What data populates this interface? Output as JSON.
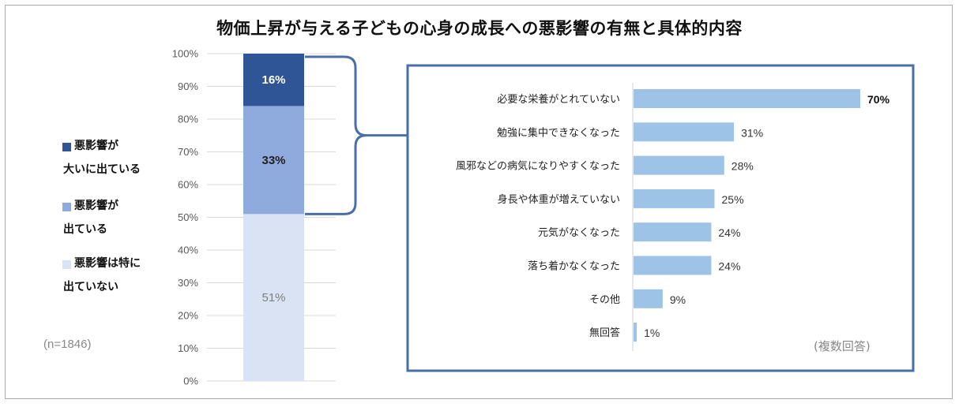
{
  "title": "物価上昇が与える子どもの心身の成長への悪影響の有無と具体的内容",
  "legend": [
    {
      "line1": "悪影響が",
      "line2": "大いに出ている",
      "color": "#2f5597"
    },
    {
      "line1": "悪影響が",
      "line2": "出ている",
      "color": "#8faadc"
    },
    {
      "line1": "悪影響は特に",
      "line2": "出ていない",
      "color": "#dae3f3"
    }
  ],
  "sample_size": "(n=1846)",
  "multiple_answer_note": "(複数回答)",
  "chart_data": [
    {
      "type": "bar",
      "stacked": true,
      "orientation": "vertical",
      "title": "",
      "ylim": [
        0,
        100
      ],
      "yticks": [
        "0%",
        "10%",
        "20%",
        "30%",
        "40%",
        "50%",
        "60%",
        "70%",
        "80%",
        "90%",
        "100%"
      ],
      "grid": true,
      "series": [
        {
          "name": "悪影響は特に出ていない",
          "value": 51,
          "label": "51%",
          "color": "#dae3f3",
          "label_color": "#7f7f7f",
          "label_bold": false
        },
        {
          "name": "悪影響が出ている",
          "value": 33,
          "label": "33%",
          "color": "#8faadc",
          "label_color": "#1f1f1f",
          "label_bold": true
        },
        {
          "name": "悪影響が大いに出ている",
          "value": 16,
          "label": "16%",
          "color": "#2f5597",
          "label_color": "#ffffff",
          "label_bold": true
        }
      ]
    },
    {
      "type": "bar",
      "orientation": "horizontal",
      "title": "",
      "xlim": [
        0,
        100
      ],
      "bar_color": "#9dc3e6",
      "categories": [
        "必要な栄養がとれていない",
        "勉強に集中できなくなった",
        "風邪などの病気になりやすくなった",
        "身長や体重が増えていない",
        "元気がなくなった",
        "落ち着かなくなった",
        "その他",
        "無回答"
      ],
      "values": [
        70,
        31,
        28,
        25,
        24,
        24,
        9,
        1
      ],
      "labels": [
        "70%",
        "31%",
        "28%",
        "25%",
        "24%",
        "24%",
        "9%",
        "1%"
      ]
    }
  ]
}
